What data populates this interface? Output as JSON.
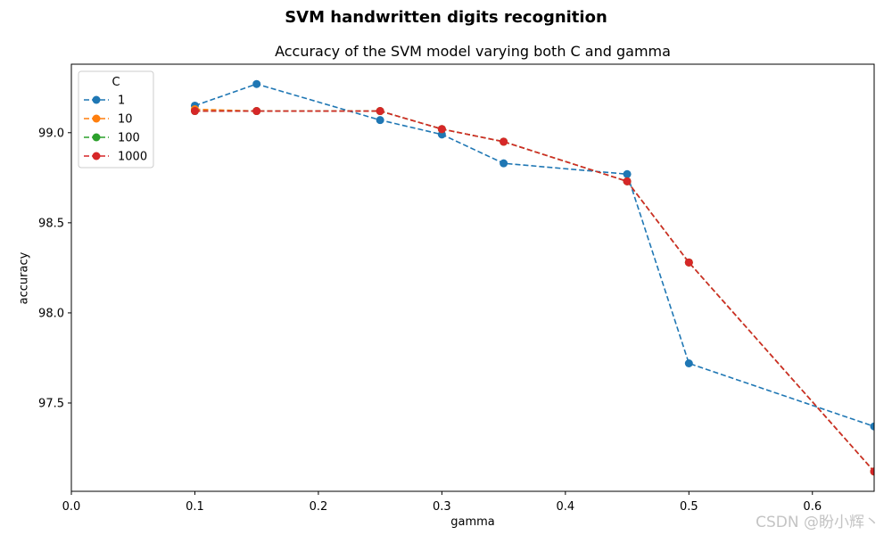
{
  "chart_data": {
    "type": "line",
    "suptitle": "SVM handwritten digits recognition",
    "title": "Accuracy of the SVM model varying both C and gamma",
    "xlabel": "gamma",
    "ylabel": "accuracy",
    "xlim": [
      0.0,
      0.65
    ],
    "ylim": [
      97.01,
      99.38
    ],
    "xticks": [
      "0.0",
      "0.1",
      "0.2",
      "0.3",
      "0.4",
      "0.5",
      "0.6"
    ],
    "yticks": [
      "97.5",
      "98.0",
      "98.5",
      "99.0"
    ],
    "grid": false,
    "line_style": "dashed",
    "marker": "circle",
    "legend": {
      "title": "C",
      "position": "top-left"
    },
    "x": [
      0.1,
      0.15,
      0.25,
      0.3,
      0.35,
      0.45,
      0.5,
      0.65
    ],
    "series": [
      {
        "name": "1",
        "color": "#1f77b4",
        "values": [
          99.15,
          99.27,
          99.07,
          98.99,
          98.83,
          98.77,
          97.72,
          97.37
        ]
      },
      {
        "name": "10",
        "color": "#ff7f0e",
        "values": [
          99.13,
          99.12,
          99.12,
          99.02,
          98.95,
          98.73,
          98.28,
          97.12
        ]
      },
      {
        "name": "100",
        "color": "#2ca02c",
        "values": [
          99.12,
          99.12,
          99.12,
          99.02,
          98.95,
          98.73,
          98.28,
          97.12
        ]
      },
      {
        "name": "1000",
        "color": "#d62728",
        "values": [
          99.12,
          99.12,
          99.12,
          99.02,
          98.95,
          98.73,
          98.28,
          97.12
        ]
      }
    ]
  },
  "watermark": "CSDN @盼小辉丶"
}
